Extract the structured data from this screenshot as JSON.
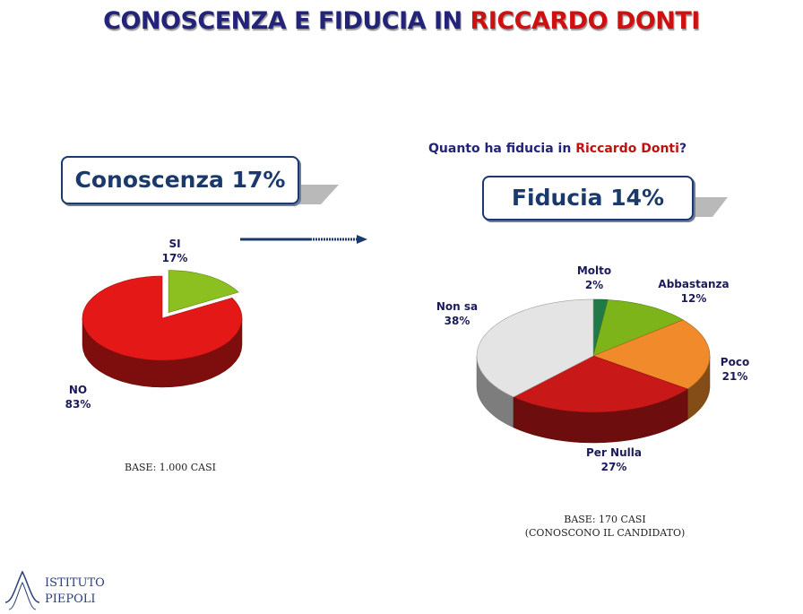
{
  "title": {
    "part1": "CONOSCENZA E FIDUCIA IN ",
    "part2": "RICCARDO DONTI"
  },
  "question": {
    "part1": "Quanto ha fiducia in ",
    "part2": "Riccardo Donti",
    "part3": "?"
  },
  "box_conoscenza": "Conoscenza 17%",
  "box_fiducia": "Fiducia 14%",
  "base_left": "BASE: 1.000 CASI",
  "base_right": {
    "line1": "BASE: 170 CASI",
    "line2": "(CONOSCONO IL CANDIDATO)"
  },
  "logo": {
    "line1": "ISTITUTO",
    "line2": "PIEPOLI"
  },
  "chart_data": [
    {
      "type": "pie",
      "title": "Conoscenza",
      "slices": [
        {
          "label": "SI",
          "value": 17,
          "display": "17%",
          "color": "#8cc020"
        },
        {
          "label": "NO",
          "value": 83,
          "display": "83%",
          "color": "#e51818"
        }
      ]
    },
    {
      "type": "pie",
      "title": "Fiducia",
      "slices": [
        {
          "label": "Molto",
          "value": 2,
          "display": "2%",
          "color": "#1f7a48"
        },
        {
          "label": "Abbastanza",
          "value": 12,
          "display": "12%",
          "color": "#7cb41a"
        },
        {
          "label": "Poco",
          "value": 21,
          "display": "21%",
          "color": "#f08a2a"
        },
        {
          "label": "Per Nulla",
          "value": 27,
          "display": "27%",
          "color": "#c81818"
        },
        {
          "label": "Non sa",
          "value": 38,
          "display": "38%",
          "color": "#e4e4e4"
        }
      ]
    }
  ]
}
